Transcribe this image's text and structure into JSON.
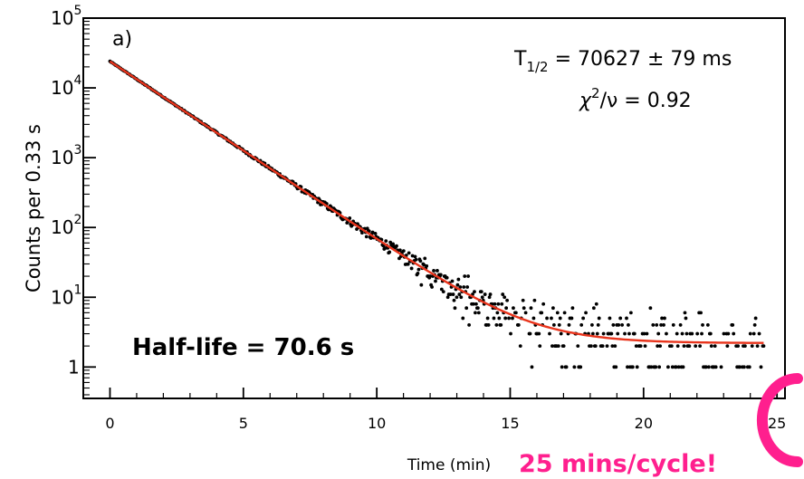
{
  "chart_data": {
    "type": "scatter",
    "xlabel": "Time (min)",
    "ylabel": "Counts per 0.33 s",
    "xlim": [
      -1,
      25.3
    ],
    "ylim_log10": [
      -0.45,
      5.0
    ],
    "y_scale": "log",
    "x_ticks": [
      "0",
      "5",
      "10",
      "15",
      "20",
      "25"
    ],
    "y_ticks": [
      {
        "base": "1",
        "exp": ""
      },
      {
        "base": "10",
        "exp": "1"
      },
      {
        "base": "10",
        "exp": "2"
      },
      {
        "base": "10",
        "exp": "3"
      },
      {
        "base": "10",
        "exp": "4"
      },
      {
        "base": "10",
        "exp": "5"
      }
    ],
    "panel_label": "a)",
    "annotation_halflife_T": "T",
    "annotation_halflife_sub": "1/2",
    "annotation_halflife_rest": " = 70627 ± 79 ms",
    "annotation_chi_main": "χ",
    "annotation_chi_sup": "2",
    "annotation_chi_rest": "/ν = 0.92",
    "big_label": "Half-life = 70.6 s",
    "callout": "25 mins/cycle!",
    "fit": {
      "name": "fit",
      "model": "A*exp(-ln2*t/T) + B",
      "A": 24000,
      "T_half_s": 70.627,
      "B": 2.2,
      "x_range": [
        0,
        24.5
      ]
    },
    "series": [
      {
        "name": "data",
        "description_points": "measured counts, dense along the fit until ~15 min, then scattered between 1 and 5 counts"
      }
    ],
    "colors": {
      "data": "#000000",
      "fit": "#e8341c",
      "callout": "#ff1f8e",
      "axes": "#000000"
    }
  }
}
